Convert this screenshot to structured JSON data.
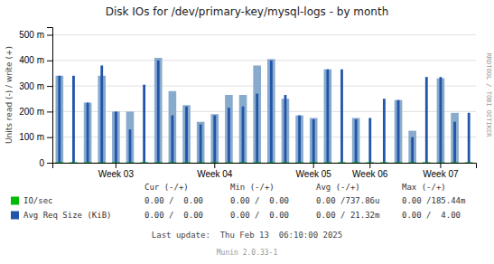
{
  "chart_data": {
    "type": "bar",
    "title": "Disk IOs for /dev/primary-key/mysql-logs - by month",
    "y_label": "Units read (-) / write (+)",
    "categories": [
      null,
      null,
      null,
      null,
      "Week 03",
      null,
      null,
      null,
      null,
      null,
      null,
      "Week 04",
      null,
      null,
      null,
      null,
      null,
      null,
      "Week 05",
      null,
      null,
      null,
      "Week 06",
      null,
      null,
      null,
      null,
      "Week 07",
      null,
      null
    ],
    "series": [
      {
        "name": "IO/sec",
        "color": "#00bb00",
        "values": [
          2,
          2,
          2,
          2,
          2,
          2,
          2,
          2,
          2,
          2,
          2,
          2,
          2,
          2,
          2,
          2,
          2,
          2,
          2,
          2,
          2,
          2,
          2,
          2,
          2,
          2,
          2,
          2,
          2,
          2
        ]
      },
      {
        "name": "Avg Req Size (KiB)",
        "color": "#2255aa",
        "values": [
          340,
          340,
          235,
          380,
          200,
          130,
          305,
          400,
          185,
          220,
          150,
          185,
          215,
          220,
          270,
          400,
          265,
          185,
          170,
          365,
          365,
          170,
          175,
          250,
          245,
          100,
          335,
          335,
          160,
          195
        ]
      },
      {
        "color": "#88aacc",
        "values": [
          340,
          0,
          235,
          340,
          200,
          200,
          0,
          410,
          280,
          225,
          160,
          190,
          265,
          265,
          380,
          405,
          250,
          185,
          175,
          365,
          0,
          175,
          0,
          0,
          245,
          125,
          0,
          330,
          195,
          0
        ]
      }
    ],
    "ylim": [
      0,
      530
    ],
    "yticks": [
      0,
      {
        "value": 100,
        "label": "100 m"
      },
      {
        "value": 200,
        "label": "200 m"
      },
      {
        "value": 300,
        "label": "300 m"
      },
      {
        "value": 400,
        "label": "400 m"
      },
      {
        "value": 500,
        "label": "500 m"
      }
    ],
    "grid": true,
    "table": {
      "columns": [
        "Cur (-/+)",
        "Min (-/+)",
        "Avg (-/+)",
        "Max (-/+)"
      ],
      "rows": [
        [
          "0.00 /  0.00",
          "0.00 /  0.00",
          "0.00 /737.86u",
          "0.00 /185.44m"
        ],
        [
          "0.00 /  0.00",
          "0.00 /  0.00",
          "0.00 / 21.32m",
          "0.00 /  4.00"
        ]
      ]
    },
    "annotations": [
      "RRDTOOL / TOBI OETIKER",
      "Last update:  Thu Feb 13  06:10:00 2025",
      "Munin 2.0.33-1"
    ]
  }
}
